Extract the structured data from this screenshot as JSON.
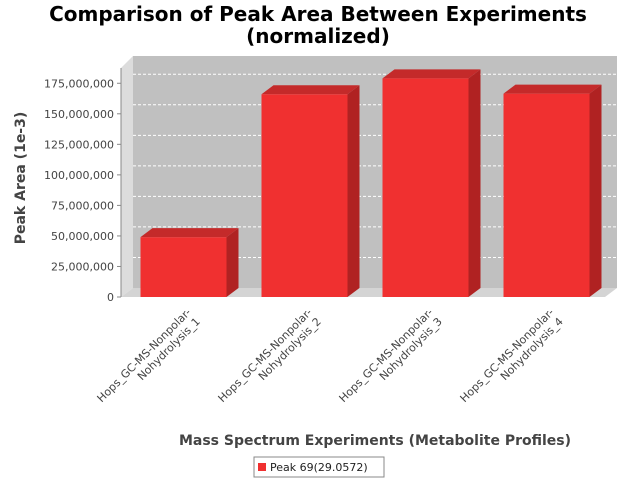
{
  "chart_data": {
    "type": "bar",
    "title": "Comparison of Peak Area Between Experiments",
    "subtitle": "(normalized)",
    "xlabel": "Mass Spectrum Experiments (Metabolite Profiles)",
    "ylabel": "Peak Area (1e-3)",
    "categories": [
      [
        "Hops_GC-MS-Nonpolar-",
        "Nohydrolysis_1"
      ],
      [
        "Hops_GC-MS-Nonpolar-",
        "Nohydrolysis_2"
      ],
      [
        "Hops_GC-MS-Nonpolar-",
        "Nohydrolysis_3"
      ],
      [
        "Hops_GC-MS-Nonpolar-",
        "Nohydrolysis_4"
      ]
    ],
    "series": [
      {
        "name": "Peak 69(29.0572)",
        "color": "#f03030",
        "values": [
          49000000,
          166000000,
          179000000,
          166500000
        ]
      }
    ],
    "ylim": [
      0,
      187500000
    ],
    "yticks": [
      0,
      25000000,
      50000000,
      75000000,
      100000000,
      125000000,
      150000000,
      175000000
    ],
    "ytick_labels": [
      "0",
      "25,000,000",
      "50,000,000",
      "75,000,000",
      "100,000,000",
      "125,000,000",
      "150,000,000",
      "175,000,000"
    ],
    "grid": true,
    "legend_position": "bottom"
  }
}
